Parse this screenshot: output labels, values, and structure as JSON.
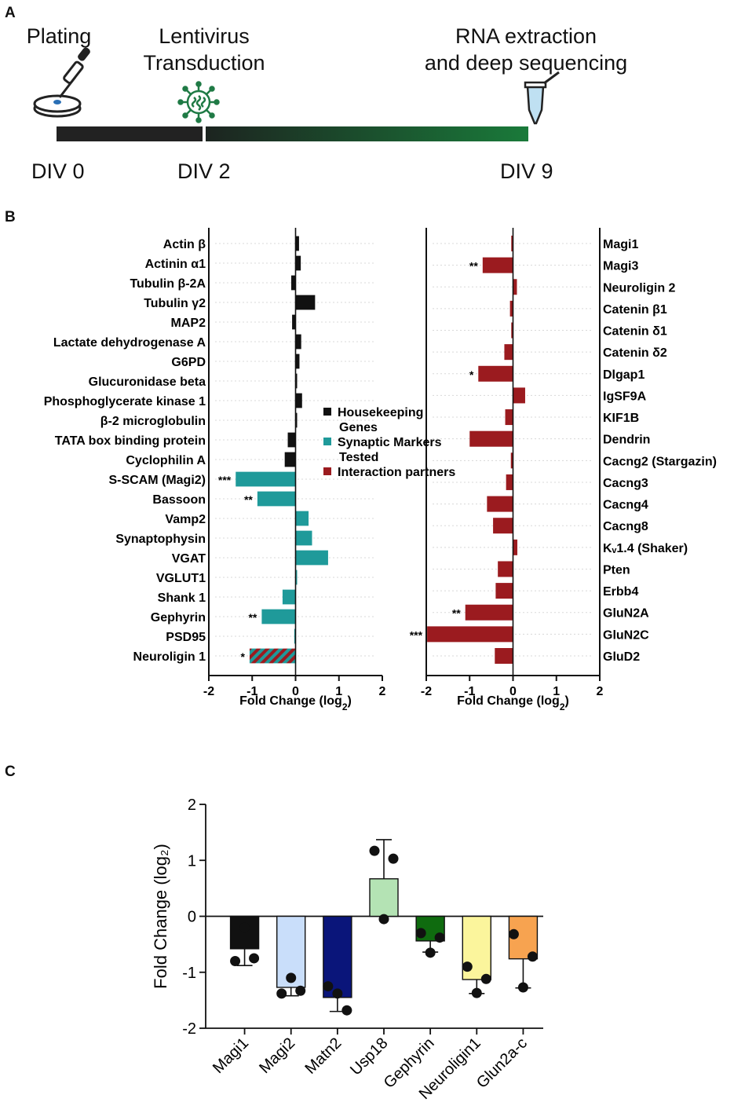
{
  "panels": {
    "a": "A",
    "b": "B",
    "c": "C"
  },
  "timeline": {
    "steps": [
      {
        "label_line1": "Plating",
        "label_line2": ""
      },
      {
        "label_line1": "Lentivirus",
        "label_line2": "Transduction"
      },
      {
        "label_line1": "RNA extraction",
        "label_line2": "and deep sequencing"
      }
    ],
    "days": [
      "DIV 0",
      "DIV 2",
      "DIV 9"
    ],
    "colors": {
      "bar_dark": "#222222",
      "bar_green": "#1a7a3a",
      "virus": "#1f7a45",
      "dish_drop": "#2a6fb5",
      "tube_liquid": "#bfe0f2"
    }
  },
  "chart_data": [
    {
      "type": "bar",
      "orientation": "horizontal",
      "title": "",
      "xlabel": "Fold Change (log",
      "xlabel_sub": "2",
      "xlabel_close": ")",
      "xlim": [
        -2,
        2
      ],
      "xticks": [
        "-2",
        "-1",
        "0",
        "1",
        "2"
      ],
      "categories": [
        "Actin β",
        "Actinin α1",
        "Tubulin β-2A",
        "Tubulin γ2",
        "MAP2",
        "Lactate dehydrogenase A",
        "G6PD",
        "Glucuronidase beta",
        "Phosphoglycerate kinase 1",
        "β-2 microglobulin",
        "TATA box binding protein",
        "Cyclophilin A",
        "S-SCAM (Magi2)",
        "Bassoon",
        "Vamp2",
        "Synaptophysin",
        "VGAT",
        "VGLUT1",
        "Shank 1",
        "Gephyrin",
        "PSD95",
        "Neuroligin 1"
      ],
      "values": [
        0.08,
        0.12,
        -0.1,
        0.45,
        -0.08,
        0.13,
        0.09,
        0.02,
        0.15,
        0.02,
        -0.18,
        -0.25,
        -1.38,
        -0.88,
        0.3,
        0.38,
        0.75,
        0.03,
        -0.3,
        -0.78,
        -0.03,
        -1.06
      ],
      "groups": [
        "hk",
        "hk",
        "hk",
        "hk",
        "hk",
        "hk",
        "hk",
        "hk",
        "hk",
        "hk",
        "hk",
        "hk",
        "syn",
        "syn",
        "syn",
        "syn",
        "syn",
        "syn",
        "syn",
        "syn",
        "syn",
        "hatch"
      ],
      "significance": [
        "",
        "",
        "",
        "",
        "",
        "",
        "",
        "",
        "",
        "",
        "",
        "",
        "***",
        "**",
        "",
        "",
        "",
        "",
        "",
        "**",
        "",
        "*"
      ],
      "legend": [
        {
          "key": "hk",
          "line1": "Housekeeping",
          "line2": "Genes",
          "color": "#111111"
        },
        {
          "key": "syn",
          "line1": "Synaptic Markers",
          "line2": "Tested",
          "color": "#1f9a9a"
        },
        {
          "key": "int",
          "line1": "Interaction partners",
          "line2": "",
          "color": "#9b1b1f"
        }
      ]
    },
    {
      "type": "bar",
      "orientation": "horizontal",
      "title": "",
      "xlabel": "Fold Change (log",
      "xlabel_sub": "2",
      "xlabel_close": ")",
      "xlim": [
        -2,
        2
      ],
      "xticks": [
        "-2",
        "-1",
        "0",
        "1",
        "2"
      ],
      "categories": [
        "Magi1",
        "Magi3",
        "Neuroligin 2",
        "Catenin β1",
        "Catenin δ1",
        "Catenin δ2",
        "Dlgap1",
        "IgSF9A",
        "KIF1B",
        "Dendrin",
        "Cacng2 (Stargazin)",
        "Cacng3",
        "Cacng4",
        "Cacng8",
        "Kᵥ1.4 (Shaker)",
        "Pten",
        "Erbb4",
        "GluN2A",
        "GluN2C",
        "GluD2"
      ],
      "values": [
        -0.04,
        -0.7,
        0.09,
        -0.07,
        -0.04,
        -0.2,
        -0.8,
        0.28,
        -0.18,
        -1.0,
        -0.05,
        -0.16,
        -0.6,
        -0.46,
        0.1,
        -0.35,
        -0.4,
        -1.1,
        -1.98,
        -0.42
      ],
      "significance": [
        "",
        "**",
        "",
        "",
        "",
        "",
        "*",
        "",
        "",
        "",
        "",
        "",
        "",
        "",
        "",
        "",
        "",
        "**",
        "***",
        ""
      ]
    },
    {
      "type": "bar",
      "title": "",
      "xlabel": "",
      "ylabel": "Fold Change (log₂)",
      "ylim": [
        -2,
        2
      ],
      "yticks": [
        "2",
        "1",
        "0",
        "-1",
        "-2"
      ],
      "categories": [
        "Magi1",
        "Magi2",
        "Matn2",
        "Usp18",
        "Gephyrin",
        "Neuroligin1",
        "Glun2a-c"
      ],
      "values": [
        -0.58,
        -1.27,
        -1.45,
        0.67,
        -0.44,
        -1.13,
        -0.76
      ],
      "errors": [
        0.3,
        0.15,
        0.25,
        0.7,
        0.2,
        0.25,
        0.52
      ],
      "points": [
        [
          -0.8,
          -0.75,
          -0.2
        ],
        [
          -1.38,
          -1.33,
          -1.1
        ],
        [
          -1.25,
          -1.68,
          -1.38
        ],
        [
          1.17,
          1.03,
          -0.05
        ],
        [
          -0.3,
          -0.38,
          -0.65
        ],
        [
          -0.9,
          -1.12,
          -1.37
        ],
        [
          -0.32,
          -0.72,
          -1.27
        ]
      ],
      "colors": [
        "#111111",
        "#c9defa",
        "#0a157a",
        "#b4e3b4",
        "#0f6b0f",
        "#fbf59c",
        "#f7a350"
      ]
    }
  ]
}
